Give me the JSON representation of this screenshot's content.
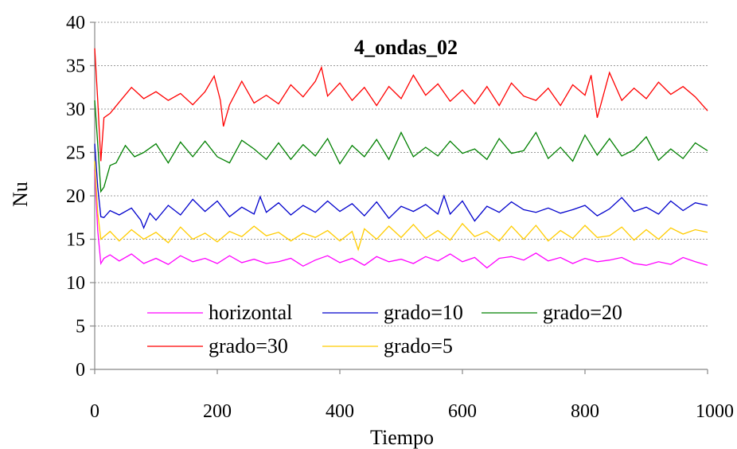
{
  "chart_data": {
    "type": "line",
    "title": "4_ondas_02",
    "xlabel": "Tiempo",
    "ylabel": "Nu",
    "xlim": [
      0,
      1000
    ],
    "ylim": [
      0,
      40
    ],
    "xticks": [
      0,
      200,
      400,
      600,
      800,
      1000
    ],
    "yticks": [
      0,
      5,
      10,
      15,
      20,
      25,
      30,
      35,
      40
    ],
    "grid": "horizontal dotted",
    "legend_position": "bottom-center",
    "series": [
      {
        "name": "horizontal",
        "color": "#ff00ff",
        "x": [
          0,
          5,
          10,
          15,
          25,
          40,
          60,
          80,
          100,
          120,
          140,
          160,
          180,
          200,
          220,
          240,
          260,
          280,
          300,
          320,
          340,
          360,
          380,
          400,
          420,
          440,
          460,
          480,
          500,
          520,
          540,
          560,
          580,
          600,
          620,
          640,
          660,
          680,
          700,
          720,
          740,
          760,
          780,
          800,
          820,
          840,
          860,
          880,
          900,
          920,
          940,
          960,
          980,
          1000
        ],
        "y": [
          23,
          16,
          12.2,
          12.8,
          13.2,
          12.5,
          13.3,
          12.2,
          12.8,
          12.1,
          13.1,
          12.4,
          12.8,
          12.2,
          13.1,
          12.3,
          12.7,
          12.2,
          12.4,
          12.8,
          11.9,
          12.6,
          13.1,
          12.3,
          12.8,
          12.0,
          13.0,
          12.4,
          12.7,
          12.2,
          13.0,
          12.5,
          13.3,
          12.4,
          12.9,
          11.7,
          12.8,
          13.0,
          12.6,
          13.4,
          12.5,
          12.9,
          12.2,
          12.8,
          12.4,
          12.6,
          12.9,
          12.2,
          12.0,
          12.4,
          12.1,
          12.9,
          12.4,
          12.0
        ]
      },
      {
        "name": "grado=10",
        "color": "#0000cc",
        "x": [
          0,
          5,
          10,
          15,
          25,
          40,
          60,
          75,
          80,
          90,
          100,
          120,
          140,
          160,
          180,
          200,
          220,
          240,
          260,
          270,
          280,
          300,
          320,
          340,
          360,
          380,
          400,
          420,
          440,
          460,
          480,
          500,
          520,
          540,
          560,
          570,
          580,
          600,
          620,
          640,
          660,
          680,
          700,
          720,
          740,
          760,
          780,
          800,
          820,
          840,
          860,
          880,
          900,
          920,
          940,
          960,
          980,
          1000
        ],
        "y": [
          26,
          21,
          17.6,
          17.5,
          18.3,
          17.8,
          18.6,
          17.2,
          16.3,
          18.0,
          17.2,
          18.9,
          17.8,
          19.6,
          18.2,
          19.4,
          17.6,
          18.7,
          17.9,
          19.9,
          18.1,
          19.2,
          17.8,
          18.9,
          18.1,
          19.4,
          18.2,
          19.1,
          17.7,
          19.3,
          17.4,
          18.8,
          18.2,
          19.0,
          17.9,
          20.0,
          17.9,
          19.4,
          17.1,
          18.8,
          18.1,
          19.3,
          18.4,
          18.1,
          18.6,
          18.0,
          18.4,
          18.9,
          17.7,
          18.5,
          19.8,
          18.2,
          18.7,
          17.9,
          19.4,
          18.3,
          19.2,
          18.9
        ]
      },
      {
        "name": "grado=20",
        "color": "#008000",
        "x": [
          0,
          5,
          10,
          15,
          25,
          35,
          50,
          65,
          80,
          100,
          120,
          140,
          160,
          180,
          200,
          220,
          240,
          260,
          280,
          300,
          320,
          340,
          360,
          380,
          400,
          420,
          440,
          460,
          480,
          500,
          520,
          540,
          560,
          580,
          600,
          620,
          640,
          660,
          680,
          700,
          720,
          740,
          760,
          780,
          800,
          820,
          840,
          860,
          880,
          900,
          920,
          940,
          960,
          980,
          1000
        ],
        "y": [
          31,
          26,
          20.5,
          21.0,
          23.5,
          23.8,
          25.8,
          24.5,
          25.0,
          26.0,
          23.8,
          26.2,
          24.5,
          26.3,
          24.5,
          23.8,
          26.4,
          25.4,
          24.2,
          26.1,
          24.2,
          25.9,
          24.6,
          26.6,
          23.7,
          25.8,
          24.5,
          26.5,
          24.2,
          27.3,
          24.5,
          25.6,
          24.6,
          26.3,
          24.9,
          25.4,
          24.2,
          26.6,
          24.9,
          25.2,
          27.3,
          24.3,
          25.6,
          24.0,
          27.0,
          24.7,
          26.6,
          24.6,
          25.3,
          26.8,
          24.1,
          25.4,
          24.3,
          26.1,
          25.2
        ]
      },
      {
        "name": "grado=30",
        "color": "#ff0000",
        "x": [
          0,
          5,
          10,
          15,
          25,
          40,
          60,
          80,
          100,
          120,
          140,
          160,
          180,
          195,
          205,
          210,
          220,
          240,
          260,
          280,
          300,
          320,
          340,
          360,
          370,
          380,
          400,
          420,
          440,
          460,
          480,
          500,
          520,
          540,
          560,
          580,
          600,
          620,
          640,
          660,
          680,
          700,
          720,
          740,
          760,
          780,
          800,
          810,
          820,
          840,
          860,
          880,
          900,
          920,
          940,
          960,
          980,
          1000
        ],
        "y": [
          37,
          31,
          24.0,
          29.0,
          29.5,
          30.8,
          32.5,
          31.2,
          32.0,
          31.0,
          31.8,
          30.5,
          32.0,
          33.8,
          31.0,
          28.0,
          30.5,
          33.2,
          30.7,
          31.6,
          30.6,
          32.8,
          31.4,
          33.2,
          34.8,
          31.5,
          33.0,
          31.0,
          32.5,
          30.4,
          32.6,
          31.2,
          33.9,
          31.6,
          32.9,
          30.9,
          32.2,
          30.6,
          32.6,
          30.4,
          33.0,
          31.5,
          31.0,
          32.4,
          30.4,
          32.8,
          31.6,
          33.9,
          29.0,
          34.2,
          31.0,
          32.4,
          31.2,
          33.1,
          31.7,
          32.6,
          31.4,
          29.8
        ]
      },
      {
        "name": "grado=5",
        "color": "#ffcc00",
        "x": [
          0,
          5,
          10,
          15,
          25,
          40,
          60,
          80,
          100,
          120,
          140,
          160,
          180,
          200,
          220,
          240,
          260,
          280,
          300,
          320,
          340,
          360,
          380,
          400,
          420,
          430,
          440,
          460,
          480,
          500,
          520,
          540,
          560,
          580,
          600,
          620,
          640,
          660,
          680,
          700,
          720,
          740,
          760,
          780,
          800,
          820,
          840,
          860,
          880,
          900,
          920,
          940,
          960,
          980,
          1000
        ],
        "y": [
          24,
          18,
          15.0,
          15.3,
          15.9,
          14.8,
          16.1,
          15.0,
          15.8,
          14.6,
          16.4,
          15.0,
          15.7,
          14.7,
          15.9,
          15.3,
          16.5,
          15.4,
          15.8,
          14.8,
          15.7,
          15.2,
          16.0,
          14.8,
          15.9,
          13.8,
          16.2,
          15.0,
          16.5,
          15.2,
          16.7,
          15.1,
          16.0,
          14.9,
          16.8,
          15.3,
          15.9,
          14.8,
          16.5,
          15.0,
          16.6,
          14.8,
          16.0,
          15.1,
          16.6,
          15.2,
          15.4,
          16.4,
          14.9,
          16.1,
          15.0,
          16.3,
          15.6,
          16.1,
          15.8
        ]
      }
    ]
  }
}
